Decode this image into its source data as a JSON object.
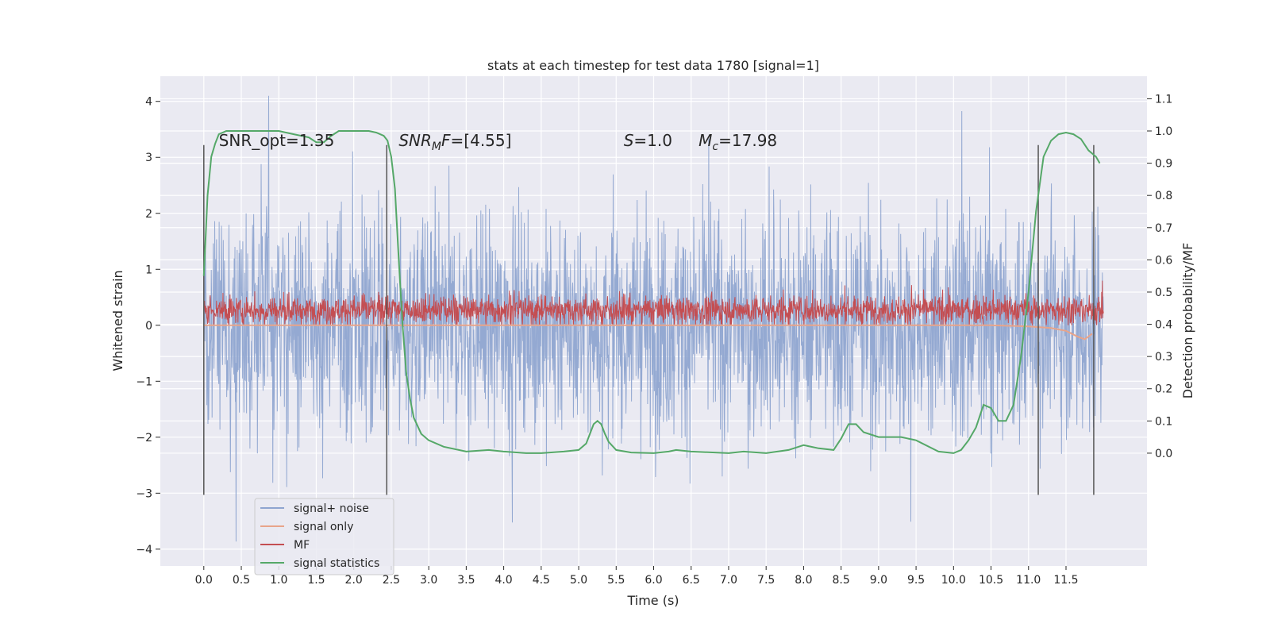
{
  "chart_data": {
    "type": "line",
    "title": "stats at each timestep for test data 1780 [signal=1]",
    "xlabel": "Time (s)",
    "ylabel": "Whitened strain",
    "ylabel_right": "Detection probability/MF",
    "xlim": [
      -0.58,
      12.58
    ],
    "ylim": [
      -4.3,
      4.45
    ],
    "ylim_right": [
      -0.35,
      1.17
    ],
    "x_ticks": [
      0.0,
      0.5,
      1.0,
      1.5,
      2.0,
      2.5,
      3.0,
      3.5,
      4.0,
      4.5,
      5.0,
      5.5,
      6.0,
      6.5,
      7.0,
      7.5,
      8.0,
      8.5,
      9.0,
      9.5,
      10.0,
      10.5,
      11.0,
      11.5
    ],
    "x_tick_labels": [
      "0.0",
      "0.5",
      "1.0",
      "1.5",
      "2.0",
      "2.5",
      "3.0",
      "3.5",
      "4.0",
      "4.5",
      "5.0",
      "5.5",
      "6.0",
      "6.5",
      "7.0",
      "7.5",
      "8.0",
      "8.5",
      "9.0",
      "9.5",
      "10.0",
      "10.5",
      "11.0",
      "11.5"
    ],
    "y_ticks": [
      -4,
      -3,
      -2,
      -1,
      0,
      1,
      2,
      3,
      4
    ],
    "y_tick_labels": [
      "−4",
      "−3",
      "−2",
      "−1",
      "0",
      "1",
      "2",
      "3",
      "4"
    ],
    "y_right_ticks": [
      0.0,
      0.1,
      0.2,
      0.3,
      0.4,
      0.5,
      0.6,
      0.7,
      0.8,
      0.9,
      1.0,
      1.1
    ],
    "y_right_tick_labels": [
      "0.0",
      "0.1",
      "0.2",
      "0.3",
      "0.4",
      "0.5",
      "0.6",
      "0.7",
      "0.8",
      "0.9",
      "1.0",
      "1.1"
    ],
    "grid": true,
    "legend_position": "lower-left",
    "annotations": [
      {
        "text": "SNR_opt=1.35",
        "x": 0.2,
        "y": 3.2
      },
      {
        "text": "SNR_MF=[4.55]",
        "x": 2.6,
        "y": 3.2
      },
      {
        "text": "S=1.0",
        "x": 5.6,
        "y": 3.2
      },
      {
        "text": "M_c=17.98",
        "x": 6.6,
        "y": 3.2
      }
    ],
    "vertical_lines": [
      {
        "x": 0.0,
        "y_range": [
          -3.03,
          3.22
        ]
      },
      {
        "x": 2.44,
        "y_range": [
          -3.03,
          3.22
        ]
      },
      {
        "x": 11.13,
        "y_range": [
          -3.03,
          3.22
        ]
      },
      {
        "x": 11.87,
        "y_range": [
          -3.03,
          3.22
        ]
      }
    ],
    "series": [
      {
        "name": "signal+ noise",
        "color": "#8fa5d0",
        "axis": "left",
        "x_range": [
          0.0,
          12.0
        ],
        "typical_range": [
          -1.8,
          1.85
        ],
        "min": -3.9,
        "max": 4.1
      },
      {
        "name": "signal only",
        "color": "#e8a48a",
        "axis": "left",
        "x": [
          0.0,
          10.5,
          11.0,
          11.3,
          11.5,
          11.65,
          11.75,
          11.85
        ],
        "y": [
          0.0,
          0.0,
          -0.02,
          -0.05,
          -0.1,
          -0.2,
          -0.25,
          -0.15
        ]
      },
      {
        "name": "MF",
        "color": "#c44e52",
        "axis": "left",
        "x_range": [
          0.0,
          12.0
        ],
        "typical_range": [
          0.0,
          0.55
        ],
        "max": 0.85
      },
      {
        "name": "signal statistics",
        "color": "#55a868",
        "axis": "right",
        "x": [
          0.0,
          0.05,
          0.1,
          0.15,
          0.2,
          0.3,
          0.5,
          0.8,
          1.0,
          1.2,
          1.4,
          1.5,
          1.6,
          1.7,
          1.8,
          2.0,
          2.2,
          2.3,
          2.4,
          2.45,
          2.5,
          2.55,
          2.6,
          2.65,
          2.7,
          2.75,
          2.8,
          2.9,
          3.0,
          3.2,
          3.5,
          3.8,
          4.0,
          4.3,
          4.5,
          4.8,
          5.0,
          5.1,
          5.15,
          5.2,
          5.25,
          5.3,
          5.35,
          5.4,
          5.5,
          5.7,
          6.0,
          6.2,
          6.3,
          6.5,
          7.0,
          7.2,
          7.5,
          7.8,
          8.0,
          8.2,
          8.4,
          8.5,
          8.6,
          8.7,
          8.8,
          9.0,
          9.3,
          9.5,
          9.8,
          10.0,
          10.1,
          10.2,
          10.3,
          10.4,
          10.5,
          10.55,
          10.6,
          10.7,
          10.8,
          10.9,
          11.0,
          11.1,
          11.2,
          11.3,
          11.4,
          11.5,
          11.6,
          11.7,
          11.8,
          11.9,
          11.95
        ],
        "y": [
          0.55,
          0.8,
          0.92,
          0.96,
          0.99,
          1.0,
          1.0,
          1.0,
          1.0,
          0.99,
          0.98,
          0.965,
          0.965,
          0.985,
          1.0,
          1.0,
          1.0,
          0.995,
          0.985,
          0.97,
          0.92,
          0.82,
          0.6,
          0.4,
          0.25,
          0.17,
          0.11,
          0.06,
          0.04,
          0.02,
          0.005,
          0.01,
          0.005,
          0.0,
          0.0,
          0.005,
          0.01,
          0.03,
          0.06,
          0.09,
          0.1,
          0.09,
          0.06,
          0.035,
          0.01,
          0.002,
          0.0,
          0.005,
          0.01,
          0.005,
          0.0,
          0.005,
          0.0,
          0.01,
          0.025,
          0.015,
          0.01,
          0.045,
          0.09,
          0.09,
          0.065,
          0.05,
          0.05,
          0.04,
          0.005,
          0.0,
          0.01,
          0.04,
          0.08,
          0.15,
          0.14,
          0.12,
          0.1,
          0.1,
          0.15,
          0.3,
          0.5,
          0.75,
          0.92,
          0.97,
          0.99,
          0.995,
          0.99,
          0.975,
          0.94,
          0.92,
          0.9
        ]
      }
    ]
  }
}
